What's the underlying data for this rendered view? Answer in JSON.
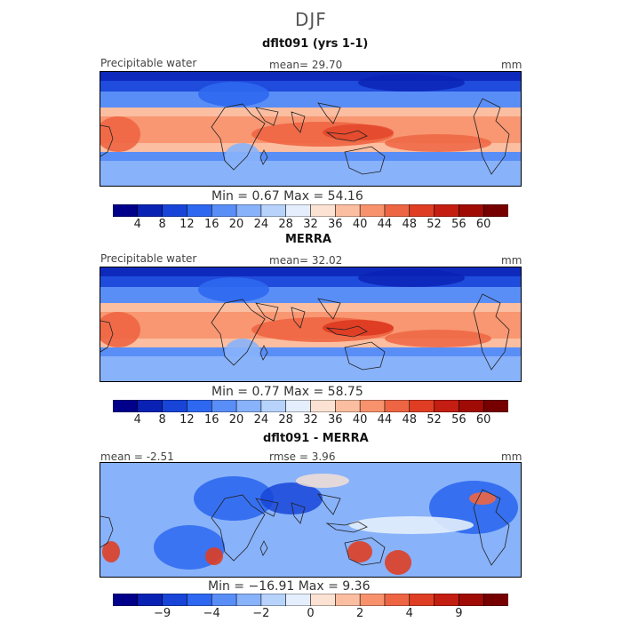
{
  "figure": {
    "title": "DJF"
  },
  "palette_colors": [
    "#00008b",
    "#0a22b4",
    "#1845d8",
    "#2e68f0",
    "#5a8ef7",
    "#88b2fa",
    "#b7d3fc",
    "#e4eefc",
    "#fbe2d2",
    "#fbbea1",
    "#f7926d",
    "#ee6543",
    "#df3e24",
    "#c41d12",
    "#a00b06",
    "#760000"
  ],
  "panels": [
    {
      "title": "dflt091 (yrs 1-1)",
      "left_label": "Precipitable water",
      "center_label": "mean=  29.70",
      "right_label": "mm",
      "minmax": "Min =    0.67  Max =   54.16",
      "tick_labels": [
        "4",
        "8",
        "12",
        "16",
        "20",
        "24",
        "28",
        "32",
        "36",
        "40",
        "44",
        "48",
        "52",
        "56",
        "60"
      ],
      "values": {
        "mean": 29.7,
        "min": 0.67,
        "max": 54.16
      }
    },
    {
      "title": "MERRA",
      "left_label": "Precipitable water",
      "center_label": "mean=  32.02",
      "right_label": "mm",
      "minmax": "Min =    0.77  Max =   58.75",
      "tick_labels": [
        "4",
        "8",
        "12",
        "16",
        "20",
        "24",
        "28",
        "32",
        "36",
        "40",
        "44",
        "48",
        "52",
        "56",
        "60"
      ],
      "values": {
        "mean": 32.02,
        "min": 0.77,
        "max": 58.75
      }
    },
    {
      "title": "dflt091 - MERRA",
      "left_label": "mean =   -2.51",
      "center_label": "rmse =    3.96",
      "right_label": "mm",
      "minmax": "Min = −16.91  Max =    9.36",
      "tick_labels": [
        "−9",
        "−4",
        "−2",
        "0",
        "2",
        "4",
        "9"
      ],
      "values": {
        "mean": -2.51,
        "rmse": 3.96,
        "min": -16.91,
        "max": 9.36
      }
    }
  ]
}
